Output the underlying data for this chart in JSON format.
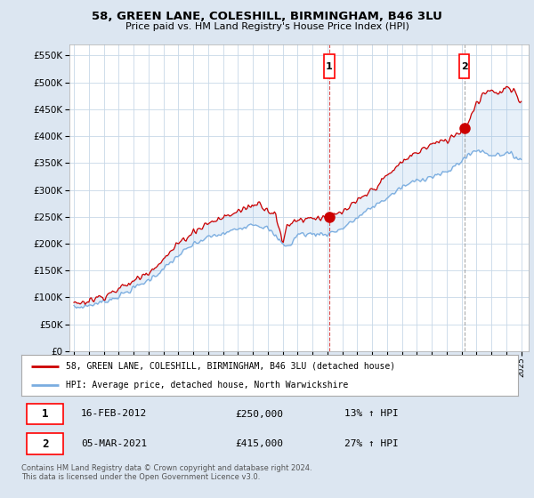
{
  "title": "58, GREEN LANE, COLESHILL, BIRMINGHAM, B46 3LU",
  "subtitle": "Price paid vs. HM Land Registry's House Price Index (HPI)",
  "ylim": [
    0,
    570000
  ],
  "yticks": [
    0,
    50000,
    100000,
    150000,
    200000,
    250000,
    300000,
    350000,
    400000,
    450000,
    500000,
    550000
  ],
  "xlim_start": 1994.7,
  "xlim_end": 2025.5,
  "background_color": "#dce6f1",
  "plot_bg_color": "#ffffff",
  "chart_fill_color": "#ddeeff",
  "red_color": "#cc0000",
  "blue_color": "#7aade0",
  "legend_label_red": "58, GREEN LANE, COLESHILL, BIRMINGHAM, B46 3LU (detached house)",
  "legend_label_blue": "HPI: Average price, detached house, North Warwickshire",
  "sale1_date": "16-FEB-2012",
  "sale1_price": "£250,000",
  "sale1_hpi": "13% ↑ HPI",
  "sale1_year": 2012.12,
  "sale1_value": 250000,
  "sale2_date": "05-MAR-2021",
  "sale2_price": "£415,000",
  "sale2_hpi": "27% ↑ HPI",
  "sale2_year": 2021.18,
  "sale2_value": 415000,
  "footer": "Contains HM Land Registry data © Crown copyright and database right 2024.\nThis data is licensed under the Open Government Licence v3.0.",
  "xticks": [
    1995,
    1996,
    1997,
    1998,
    1999,
    2000,
    2001,
    2002,
    2003,
    2004,
    2005,
    2006,
    2007,
    2008,
    2009,
    2010,
    2011,
    2012,
    2013,
    2014,
    2015,
    2016,
    2017,
    2018,
    2019,
    2020,
    2021,
    2022,
    2023,
    2024,
    2025
  ]
}
